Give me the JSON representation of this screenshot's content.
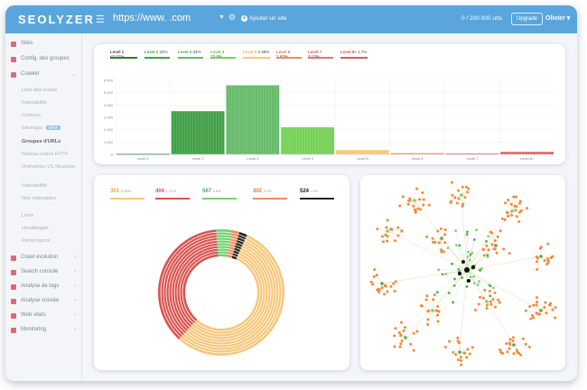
{
  "topbar": {
    "logo": "SEOLYZER",
    "menu_icon": "menu-icon",
    "url": "https://www.        .com",
    "add_site_label": "Ajouter un site",
    "urls_count": "0 / 200 000 urls",
    "upgrade_label": "Upgrade",
    "user_label": "Olivier"
  },
  "sidebar": {
    "items": [
      {
        "label": "Sites",
        "icon": "globe-icon"
      },
      {
        "label": "Config. des groupes",
        "icon": "cog-icon"
      },
      {
        "label": "Crawler",
        "icon": "spider-icon"
      },
      {
        "label": "Crawl evolution",
        "icon": "chart-icon"
      },
      {
        "label": "Search console",
        "icon": "search-icon"
      },
      {
        "label": "Analyse de logs",
        "icon": "logs-icon"
      },
      {
        "label": "Analyse croisée",
        "icon": "cross-icon"
      },
      {
        "label": "Web vitals",
        "icon": "vitals-icon"
      },
      {
        "label": "Monitoring",
        "icon": "monitor-icon"
      }
    ],
    "crawler_sub": [
      "Liste des crawls",
      "Indexabilité",
      "Contenu",
      "Sitemaps",
      "Groupes d'URLs",
      "Réseau codes HTTP",
      "Orphelines VS Structure",
      "Indexabilité",
      "Non indexables",
      "Liens",
      "Hreaflanges",
      "Performance"
    ],
    "new_badge": "NEW",
    "accent_color": "#d86a7a"
  },
  "level_chart": {
    "legend": [
      {
        "label": "Level 1",
        "pct": "<0.01%",
        "color": "#2e7d32"
      },
      {
        "label": "Level 2",
        "pct": "22%",
        "color": "#43a047"
      },
      {
        "label": "Level 3",
        "pct": "34%",
        "color": "#66bb6a"
      },
      {
        "label": "Level 4",
        "pct": "13.4%",
        "color": "#76d158"
      },
      {
        "label": "Level 5",
        "pct": "3.38%",
        "color": "#f7c77a"
      },
      {
        "label": "Level 6",
        "pct": "1.63%",
        "color": "#f08a5d"
      },
      {
        "label": "Level 7",
        "pct": "0.13%",
        "color": "#e57373"
      },
      {
        "label": "Level 8+",
        "pct": "1.7%",
        "color": "#e05a5a"
      }
    ]
  },
  "chart_data": {
    "type": "bar",
    "categories": [
      "Level 1",
      "Level 2",
      "Level 3",
      "Level 4",
      "Level 5",
      "Level 6",
      "Level 7",
      "Level 8+"
    ],
    "values": [
      50,
      3500,
      5600,
      2200,
      350,
      100,
      80,
      200
    ],
    "colors": [
      "#2e7d32",
      "#43a047",
      "#66bb6a",
      "#76d158",
      "#f7c77a",
      "#f08a5d",
      "#e57373",
      "#e05a5a"
    ],
    "yticks": [
      "0",
      "1 000",
      "2 000",
      "3 000",
      "4 000",
      "5 000",
      "6 000"
    ],
    "ylim": [
      0,
      6000
    ],
    "grid": true
  },
  "status_chart": {
    "legend": [
      {
        "code": "301",
        "pct": "5.35%",
        "color": "#f7c77a"
      },
      {
        "code": "404",
        "pct": "1.47%",
        "color": "#d9534f"
      },
      {
        "code": "567",
        "pct": "0.6%",
        "color": "#6fd36f"
      },
      {
        "code": "302",
        "pct": "0.2%",
        "color": "#f08a5d"
      },
      {
        "code": "524",
        "pct": "<1%",
        "color": "#222222"
      }
    ],
    "donut_shares": [
      0.55,
      0.37,
      0.04,
      0.02,
      0.02
    ]
  },
  "graph": {
    "node_colors": [
      "#f08a3c",
      "#4caf50",
      "#7ed36f",
      "#111111"
    ]
  }
}
